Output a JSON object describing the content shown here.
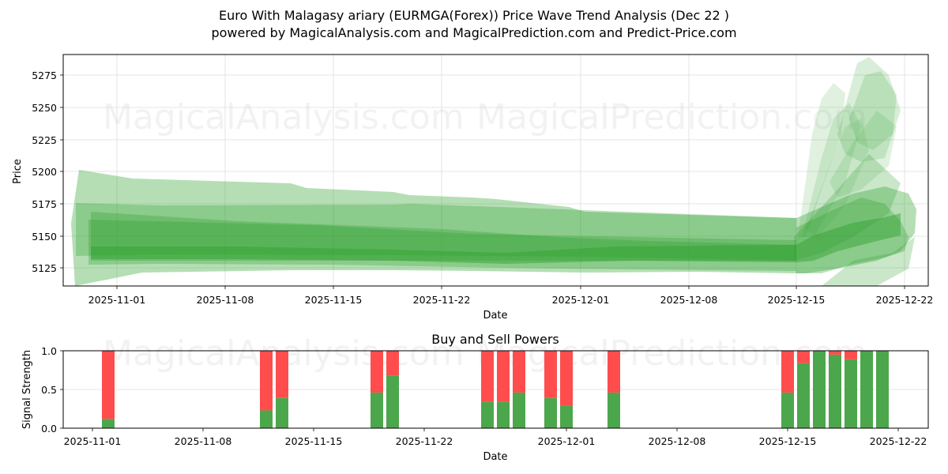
{
  "header": {
    "title": "Euro With Malagasy ariary (EURMGA(Forex)) Price Wave Trend Analysis (Dec 22 )",
    "subtitle": "powered by MagicalAnalysis.com and MagicalPrediction.com and Predict-Price.com"
  },
  "watermarks": [
    "MagicalAnalysis.com",
    "MagicalPrediction.com"
  ],
  "colors": {
    "band": "#2ca02c",
    "buy": "#4ca64c",
    "sell": "#ff4d4d",
    "grid": "#dddddd"
  },
  "chart_data": [
    {
      "type": "area",
      "title": "Price Wave Trend Bands",
      "xlabel": "Date",
      "ylabel": "Price",
      "ylim": [
        5110,
        5291
      ],
      "yticks": [
        5125,
        5150,
        5175,
        5200,
        5225,
        5250,
        5275
      ],
      "xticks": [
        "2025-11-01",
        "2025-11-08",
        "2025-11-15",
        "2025-11-22",
        "2025-12-01",
        "2025-12-08",
        "2025-12-15",
        "2025-12-22"
      ],
      "grid": true,
      "series": [
        {
          "name": "outer-band-upper",
          "x": [
            "2025-10-29",
            "2025-11-02",
            "2025-11-12",
            "2025-11-20",
            "2025-11-29",
            "2025-12-01",
            "2025-12-15"
          ],
          "values": [
            5201,
            5195,
            5191,
            5183,
            5173,
            5168,
            5162
          ]
        },
        {
          "name": "outer-band-lower",
          "x": [
            "2025-10-29",
            "2025-11-02",
            "2025-11-12",
            "2025-11-20",
            "2025-11-29",
            "2025-12-01",
            "2025-12-15"
          ],
          "values": [
            5110,
            5112,
            5114,
            5116,
            5118,
            5120,
            5121
          ]
        },
        {
          "name": "mid-band-upper",
          "x": [
            "2025-10-29",
            "2025-11-15",
            "2025-11-22",
            "2025-12-01",
            "2025-12-15"
          ],
          "values": [
            5175,
            5173,
            5174,
            5166,
            5162
          ]
        },
        {
          "name": "mid-band-lower",
          "x": [
            "2025-10-29",
            "2025-11-15",
            "2025-11-22",
            "2025-12-01",
            "2025-12-15"
          ],
          "values": [
            5133,
            5133,
            5132,
            5128,
            5125
          ]
        },
        {
          "name": "core-trend",
          "x": [
            "2025-10-30",
            "2025-11-08",
            "2025-11-15",
            "2025-11-22",
            "2025-12-01",
            "2025-12-08",
            "2025-12-15",
            "2025-12-18",
            "2025-12-21"
          ],
          "values": [
            5140,
            5141,
            5142,
            5143,
            5140,
            5139,
            5139,
            5160,
            5158
          ]
        },
        {
          "name": "forecast-spike-peak",
          "x": [
            "2025-12-16",
            "2025-12-18",
            "2025-12-20",
            "2025-12-21"
          ],
          "values": [
            5165,
            5240,
            5285,
            5250
          ]
        }
      ]
    },
    {
      "type": "bar",
      "title": "Buy and Sell Powers",
      "xlabel": "Date",
      "ylabel": "Signal Strength",
      "ylim": [
        0,
        1
      ],
      "yticks": [
        0.0,
        0.5,
        1.0
      ],
      "xticks": [
        "2025-11-01",
        "2025-11-08",
        "2025-11-15",
        "2025-11-22",
        "2025-12-01",
        "2025-12-08",
        "2025-12-15",
        "2025-12-22"
      ],
      "categories": [
        "2025-11-02",
        "2025-11-12",
        "2025-11-13",
        "2025-11-19",
        "2025-11-20",
        "2025-11-26",
        "2025-11-27",
        "2025-11-28",
        "2025-11-30",
        "2025-12-01",
        "2025-12-04",
        "2025-12-15",
        "2025-12-16",
        "2025-12-17",
        "2025-12-18",
        "2025-12-19",
        "2025-12-20",
        "2025-12-21"
      ],
      "series": [
        {
          "name": "Buy",
          "values": [
            0.12,
            0.23,
            0.39,
            0.46,
            0.68,
            0.34,
            0.34,
            0.46,
            0.39,
            0.29,
            0.46,
            0.46,
            0.84,
            1.0,
            0.95,
            0.89,
            1.0,
            1.0
          ]
        },
        {
          "name": "Sell",
          "values": [
            0.88,
            0.77,
            0.61,
            0.54,
            0.32,
            0.66,
            0.66,
            0.54,
            0.61,
            0.71,
            0.54,
            0.54,
            0.16,
            0.0,
            0.05,
            0.11,
            0.0,
            0.0
          ]
        }
      ],
      "stacked": true
    }
  ],
  "labels": {
    "price_axis": "Price",
    "date_axis": "Date",
    "signal_axis": "Signal Strength",
    "bottom_title": "Buy and Sell Powers"
  },
  "ytick_labels_top": [
    "5275",
    "5250",
    "5225",
    "5200",
    "5175",
    "5150",
    "5125"
  ],
  "ytick_labels_bottom": [
    "1.0",
    "0.5",
    "0.0"
  ],
  "xtick_labels": [
    "2025-11-01",
    "2025-11-08",
    "2025-11-15",
    "2025-11-22",
    "2025-12-01",
    "2025-12-08",
    "2025-12-15",
    "2025-12-22"
  ]
}
